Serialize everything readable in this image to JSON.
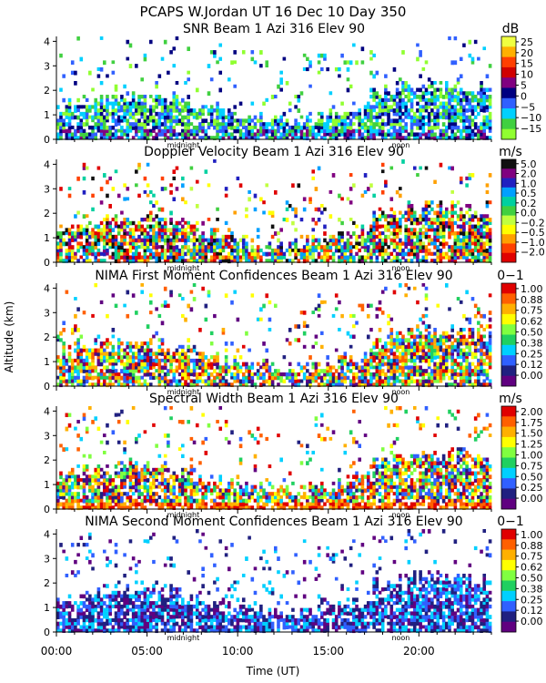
{
  "chart_data": {
    "type": "heatmap",
    "title": "PCAPS W.Jordan UT  16 Dec 10 Day 350",
    "xlabel": "Time (UT)",
    "ylabel": "Altitude (km)",
    "xlim": [
      0,
      24
    ],
    "x_ticks": [
      "00:00",
      "05:00",
      "10:00",
      "15:00",
      "20:00"
    ],
    "x_tick_values": [
      0,
      5,
      10,
      15,
      20
    ],
    "day_markers": [
      {
        "label": "midnight",
        "time": 7
      },
      {
        "label": "noon",
        "time": 19
      }
    ],
    "panels": [
      {
        "title": "SNR Beam 1 Azi 316 Elev 90",
        "units": "dB",
        "ylim": [
          0,
          4.2
        ],
        "y_ticks": [
          "0",
          "1",
          "2",
          "3",
          "4"
        ],
        "colorbar": [
          "25",
          "20",
          "15",
          "10",
          "5",
          "0",
          "−5",
          "−10",
          "−15"
        ],
        "colors": [
          "#f0ff40",
          "#ffb000",
          "#ff4000",
          "#d00000",
          "#800080",
          "#000080",
          "#3060ff",
          "#00d0ff",
          "#40d040",
          "#90ff30"
        ]
      },
      {
        "title": "Doppler Velocity Beam 1 Azi 316 Elev 90",
        "units": "m/s",
        "ylim": [
          0,
          4.2
        ],
        "y_ticks": [
          "0",
          "1",
          "2",
          "3",
          "4"
        ],
        "colorbar": [
          "5.0",
          "2.0",
          "1.0",
          "0.5",
          "0.2",
          "0.0",
          "−0.2",
          "−0.5",
          "−1.0",
          "−2.0"
        ],
        "colors": [
          "#101010",
          "#800080",
          "#2020c0",
          "#00a0ff",
          "#00d0a0",
          "#40d040",
          "#c0ff40",
          "#ffff00",
          "#ffa000",
          "#ff4000",
          "#e00000"
        ]
      },
      {
        "title": "NIMA First Moment Confidences Beam 1 Azi 316 Elev 90",
        "units": "0−1",
        "ylim": [
          0,
          4.2
        ],
        "y_ticks": [
          "0",
          "1",
          "2",
          "3",
          "4"
        ],
        "colorbar": [
          "1.00",
          "0.88",
          "0.75",
          "0.62",
          "0.50",
          "0.38",
          "0.25",
          "0.12",
          "0.00"
        ],
        "colors": [
          "#e00000",
          "#ff6000",
          "#ffb000",
          "#ffff00",
          "#80ff40",
          "#20d060",
          "#00d0ff",
          "#3060ff",
          "#202080",
          "#600080"
        ]
      },
      {
        "title": "Spectral Width Beam 1 Azi 316 Elev 90",
        "units": "m/s",
        "ylim": [
          0,
          4.2
        ],
        "y_ticks": [
          "0",
          "1",
          "2",
          "3",
          "4"
        ],
        "colorbar": [
          "2.00",
          "1.75",
          "1.50",
          "1.25",
          "1.00",
          "0.75",
          "0.50",
          "0.25",
          "0.00"
        ],
        "colors": [
          "#e00000",
          "#ff6000",
          "#ffb000",
          "#ffff00",
          "#80ff40",
          "#20d060",
          "#00d0ff",
          "#3060ff",
          "#202080",
          "#600080"
        ]
      },
      {
        "title": "NIMA Second Moment Confidences Beam 1 Azi 316 Elev 90",
        "units": "0−1",
        "ylim": [
          0,
          4.2
        ],
        "y_ticks": [
          "0",
          "1",
          "2",
          "3",
          "4"
        ],
        "colorbar": [
          "1.00",
          "0.88",
          "0.75",
          "0.62",
          "0.50",
          "0.38",
          "0.25",
          "0.12",
          "0.00"
        ],
        "colors": [
          "#e00000",
          "#ff6000",
          "#ffb000",
          "#ffff00",
          "#80ff40",
          "#20d060",
          "#00d0ff",
          "#3060ff",
          "#202080",
          "#600080"
        ]
      }
    ]
  }
}
